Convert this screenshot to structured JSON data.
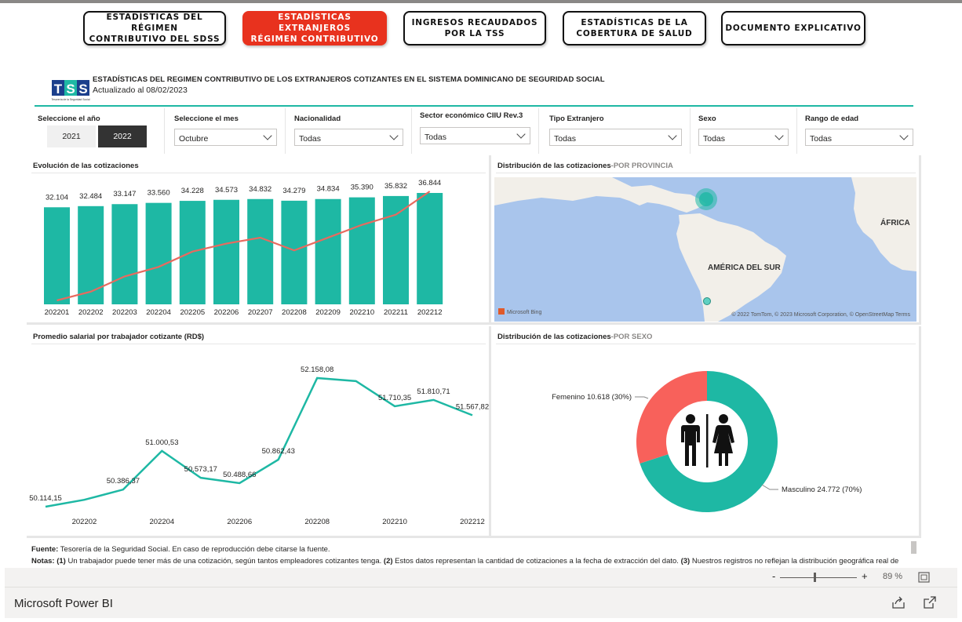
{
  "nav": [
    {
      "label": "ESTADÍSTICAS DEL RÉGIMEN\nCONTRIBUTIVO DEL SDSS",
      "active": false
    },
    {
      "label": "ESTADÍSTICAS EXTRANJEROS\nRÉGIMEN CONTRIBUTIVO",
      "active": true
    },
    {
      "label": "INGRESOS RECAUDADOS\nPOR LA TSS",
      "active": false
    },
    {
      "label": "ESTADÍSTICAS DE LA\nCOBERTURA DE SALUD",
      "active": false
    },
    {
      "label": "DOCUMENTO EXPLICATIVO",
      "active": false
    }
  ],
  "header": {
    "logo_text": "TSS",
    "logo_sub": "Tesorería de la Seguridad Social",
    "title": "ESTADÍSTICAS DEL REGIMEN CONTRIBUTIVO DE LOS EXTRANJEROS COTIZANTES EN EL SISTEMA DOMINICANO DE SEGURIDAD SOCIAL",
    "updated": "Actualizado al 08/02/2023"
  },
  "filters": {
    "year_label": "Seleccione el año",
    "years": [
      "2021",
      "2022"
    ],
    "selected_year": "2022",
    "month": {
      "label": "Seleccione el mes",
      "value": "Octubre"
    },
    "nationality": {
      "label": "Nacionalidad",
      "value": "Todas"
    },
    "sector": {
      "label": "Sector económico CIIU Rev.3",
      "value": "Todas"
    },
    "type": {
      "label": "Tipo Extranjero",
      "value": "Todas"
    },
    "sex": {
      "label": "Sexo",
      "value": "Todas"
    },
    "age": {
      "label": "Rango de edad",
      "value": "Todas"
    }
  },
  "panels": {
    "evolution_title": "Evolución de las cotizaciones",
    "map_title": "Distribución de las cotizaciones",
    "map_title_sub": "-POR PROVINCIA",
    "salary_title": "Promedio salarial por trabajador cotizante (RD$)",
    "sex_title": "Distribución de las cotizaciones",
    "sex_title_sub": "-POR SEXO"
  },
  "map": {
    "label_africa": "ÁFRICA",
    "label_sa": "AMÉRICA DEL SUR",
    "attribution": "© 2022 TomTom, © 2023 Microsoft Corporation, © OpenStreetMap  Terms",
    "brand": "Microsoft Bing",
    "colors": {
      "water": "#a9c5ec",
      "land": "#f2efe9",
      "bubble": "#1eb8a4"
    }
  },
  "chart_data": [
    {
      "type": "bar",
      "categories": [
        "202201",
        "202202",
        "202203",
        "202204",
        "202205",
        "202206",
        "202207",
        "202208",
        "202209",
        "202210",
        "202211",
        "202212"
      ],
      "series": [
        {
          "values": [
            32104,
            32484,
            33147,
            33560,
            34228,
            34573,
            34832,
            34279,
            34834,
            35390,
            35832,
            36844
          ]
        }
      ],
      "value_labels": [
        "32.104",
        "32.484",
        "33.147",
        "33.560",
        "34.228",
        "34.573",
        "34.832",
        "34.279",
        "34.834",
        "35.390",
        "35.832",
        "36.844"
      ],
      "trend_line": true,
      "colors": {
        "bar": "#1eb8a4",
        "line": "#e86a5f"
      }
    },
    {
      "type": "line",
      "x": [
        "202201",
        "202202",
        "202203",
        "202204",
        "202205",
        "202206",
        "202207",
        "202208",
        "202209",
        "202210",
        "202211",
        "202212"
      ],
      "tick_labels": [
        "202202",
        "202204",
        "202206",
        "202208",
        "202210",
        "202212"
      ],
      "series": [
        {
          "values": [
            50114.15,
            50224.0,
            50386.37,
            51000.53,
            50573.17,
            50488.66,
            50862.43,
            52158.08,
            52110.0,
            51710.35,
            51810.71,
            51567.82
          ]
        }
      ],
      "point_labels": [
        {
          "i": 0,
          "text": "50.114,15"
        },
        {
          "i": 2,
          "text": "50.386,37"
        },
        {
          "i": 3,
          "text": "51.000,53"
        },
        {
          "i": 4,
          "text": "50.573,17"
        },
        {
          "i": 5,
          "text": "50.488,66"
        },
        {
          "i": 6,
          "text": "50.862,43"
        },
        {
          "i": 7,
          "text": "52.158,08"
        },
        {
          "i": 9,
          "text": "51.710,35"
        },
        {
          "i": 10,
          "text": "51.810,71"
        },
        {
          "i": 11,
          "text": "51.567,82"
        }
      ],
      "colors": {
        "line": "#1eb8a4"
      }
    },
    {
      "type": "pie",
      "categories": [
        "Femenino",
        "Masculino"
      ],
      "values": [
        10618,
        24772
      ],
      "labels": [
        "Femenino 10.618 (30%)",
        "Masculino 24.772 (70%)"
      ],
      "colors": {
        "Femenino": "#f8615b",
        "Masculino": "#1eb8a4"
      }
    }
  ],
  "footer": {
    "source_bold": "Fuente:",
    "source_text": " Tesorería de la Seguridad Social. En caso de reproducción debe citarse la fuente.",
    "notes_bold": "Notas:",
    "notes_1": "(1)",
    "notes_1_text": " Un trabajador puede tener más de una cotización, según tantos empleadores cotizantes tenga. ",
    "notes_2": "(2)",
    "notes_2_text": " Estos datos representan la cantidad de cotizaciones a la fecha de extracción del dato. ",
    "notes_3": "(3)",
    "notes_3_text": " Nuestros registros no reflejan la distribución geográfica real de"
  },
  "zoom": {
    "minus": "-",
    "plus": "+",
    "value": "89 %",
    "level": 0.45
  },
  "app": {
    "name": "Microsoft Power BI"
  }
}
